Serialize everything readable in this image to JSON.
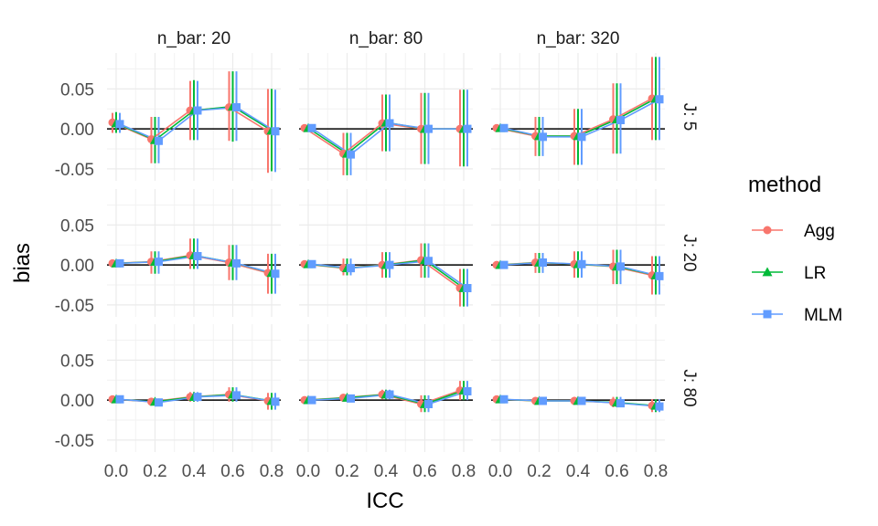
{
  "chart_data": {
    "type": "line",
    "title": "",
    "xlabel": "ICC",
    "ylabel": "bias",
    "x": [
      0.0,
      0.2,
      0.4,
      0.6,
      0.8
    ],
    "x_tick_labels": [
      "0.0",
      "0.2",
      "0.4",
      "0.6",
      "0.8"
    ],
    "ylim": [
      -0.065,
      0.095
    ],
    "y_ticks": [
      -0.05,
      0.0,
      0.05
    ],
    "y_tick_labels": [
      "-0.05",
      "0.00",
      "0.05"
    ],
    "grid": true,
    "reference_line_y": 0,
    "facet_columns": [
      "n_bar: 20",
      "n_bar: 80",
      "n_bar: 320"
    ],
    "facet_rows": [
      "J: 5",
      "J: 20",
      "J: 80"
    ],
    "legend": {
      "title": "method",
      "position": "right",
      "entries": [
        {
          "name": "Agg",
          "color": "#F8766D",
          "shape": "circle"
        },
        {
          "name": "LR",
          "color": "#00BA38",
          "shape": "triangle"
        },
        {
          "name": "MLM",
          "color": "#619CFF",
          "shape": "square"
        }
      ]
    },
    "panels": [
      {
        "row": 0,
        "col": 0,
        "series": [
          {
            "name": "Agg",
            "values": [
              0.008,
              -0.013,
              0.023,
              0.027,
              -0.003
            ],
            "lower": [
              -0.005,
              -0.043,
              -0.014,
              -0.015,
              -0.055
            ],
            "upper": [
              0.02,
              0.015,
              0.06,
              0.072,
              0.05
            ]
          },
          {
            "name": "LR",
            "values": [
              0.007,
              -0.014,
              0.023,
              0.028,
              -0.002
            ],
            "lower": [
              -0.005,
              -0.043,
              -0.014,
              -0.016,
              -0.053
            ],
            "upper": [
              0.021,
              0.015,
              0.061,
              0.072,
              0.05
            ]
          },
          {
            "name": "MLM",
            "values": [
              0.006,
              -0.015,
              0.023,
              0.027,
              -0.003
            ],
            "lower": [
              -0.005,
              -0.043,
              -0.014,
              -0.015,
              -0.054
            ],
            "upper": [
              0.02,
              0.015,
              0.06,
              0.072,
              0.049
            ]
          }
        ]
      },
      {
        "row": 0,
        "col": 1,
        "series": [
          {
            "name": "Agg",
            "values": [
              0.001,
              -0.031,
              0.007,
              0.0,
              0.0
            ],
            "lower": [
              -0.003,
              -0.058,
              -0.028,
              -0.044,
              -0.047
            ],
            "upper": [
              0.004,
              -0.005,
              0.043,
              0.045,
              0.049
            ]
          },
          {
            "name": "LR",
            "values": [
              0.001,
              -0.031,
              0.008,
              0.0,
              0.0
            ],
            "lower": [
              -0.003,
              -0.058,
              -0.028,
              -0.044,
              -0.047
            ],
            "upper": [
              0.004,
              -0.005,
              0.043,
              0.045,
              0.049
            ]
          },
          {
            "name": "MLM",
            "values": [
              0.001,
              -0.032,
              0.007,
              0.0,
              0.0
            ],
            "lower": [
              -0.003,
              -0.058,
              -0.028,
              -0.044,
              -0.047
            ],
            "upper": [
              0.004,
              -0.005,
              0.043,
              0.045,
              0.049
            ]
          }
        ]
      },
      {
        "row": 0,
        "col": 2,
        "series": [
          {
            "name": "Agg",
            "values": [
              0.001,
              -0.009,
              -0.009,
              0.012,
              0.038
            ],
            "lower": [
              -0.003,
              -0.034,
              -0.045,
              -0.031,
              -0.014
            ],
            "upper": [
              0.004,
              0.015,
              0.025,
              0.057,
              0.09
            ]
          },
          {
            "name": "LR",
            "values": [
              0.001,
              -0.009,
              -0.009,
              0.012,
              0.038
            ],
            "lower": [
              -0.003,
              -0.034,
              -0.045,
              -0.031,
              -0.014
            ],
            "upper": [
              0.004,
              0.015,
              0.025,
              0.057,
              0.09
            ]
          },
          {
            "name": "MLM",
            "values": [
              0.001,
              -0.01,
              -0.01,
              0.011,
              0.037
            ],
            "lower": [
              -0.003,
              -0.034,
              -0.045,
              -0.031,
              -0.014
            ],
            "upper": [
              0.004,
              0.015,
              0.025,
              0.057,
              0.09
            ]
          }
        ]
      },
      {
        "row": 1,
        "col": 0,
        "series": [
          {
            "name": "Agg",
            "values": [
              0.002,
              0.004,
              0.012,
              0.003,
              -0.01
            ],
            "lower": [
              -0.003,
              -0.011,
              -0.005,
              -0.019,
              -0.036
            ],
            "upper": [
              0.006,
              0.017,
              0.033,
              0.025,
              0.014
            ]
          },
          {
            "name": "LR",
            "values": [
              0.002,
              0.004,
              0.012,
              0.003,
              -0.01
            ],
            "lower": [
              -0.003,
              -0.011,
              -0.005,
              -0.019,
              -0.036
            ],
            "upper": [
              0.006,
              0.017,
              0.033,
              0.025,
              0.014
            ]
          },
          {
            "name": "MLM",
            "values": [
              0.002,
              0.004,
              0.011,
              0.002,
              -0.011
            ],
            "lower": [
              -0.003,
              -0.011,
              -0.005,
              -0.019,
              -0.036
            ],
            "upper": [
              0.006,
              0.017,
              0.033,
              0.025,
              0.014
            ]
          }
        ]
      },
      {
        "row": 1,
        "col": 1,
        "series": [
          {
            "name": "Agg",
            "values": [
              0.001,
              -0.004,
              0.0,
              0.006,
              -0.029
            ],
            "lower": [
              -0.003,
              -0.013,
              -0.016,
              -0.016,
              -0.052
            ],
            "upper": [
              0.004,
              0.008,
              0.016,
              0.027,
              -0.005
            ]
          },
          {
            "name": "LR",
            "values": [
              0.001,
              -0.004,
              0.0,
              0.006,
              -0.029
            ],
            "lower": [
              -0.003,
              -0.013,
              -0.016,
              -0.016,
              -0.052
            ],
            "upper": [
              0.004,
              0.008,
              0.016,
              0.027,
              -0.005
            ]
          },
          {
            "name": "MLM",
            "values": [
              0.001,
              -0.004,
              0.0,
              0.005,
              -0.029
            ],
            "lower": [
              -0.003,
              -0.013,
              -0.016,
              -0.016,
              -0.052
            ],
            "upper": [
              0.004,
              0.008,
              0.016,
              0.027,
              -0.005
            ]
          }
        ]
      },
      {
        "row": 1,
        "col": 2,
        "series": [
          {
            "name": "Agg",
            "values": [
              0.0,
              0.003,
              0.001,
              -0.002,
              -0.013
            ],
            "lower": [
              -0.004,
              -0.01,
              -0.016,
              -0.024,
              -0.037
            ],
            "upper": [
              0.004,
              0.015,
              0.017,
              0.019,
              0.011
            ]
          },
          {
            "name": "LR",
            "values": [
              0.0,
              0.003,
              0.001,
              -0.002,
              -0.013
            ],
            "lower": [
              -0.004,
              -0.01,
              -0.016,
              -0.024,
              -0.037
            ],
            "upper": [
              0.004,
              0.015,
              0.017,
              0.019,
              0.011
            ]
          },
          {
            "name": "MLM",
            "values": [
              0.0,
              0.003,
              0.001,
              -0.002,
              -0.014
            ],
            "lower": [
              -0.004,
              -0.01,
              -0.016,
              -0.024,
              -0.037
            ],
            "upper": [
              0.004,
              0.015,
              0.017,
              0.019,
              0.011
            ]
          }
        ]
      },
      {
        "row": 2,
        "col": 0,
        "series": [
          {
            "name": "Agg",
            "values": [
              0.001,
              -0.002,
              0.004,
              0.007,
              -0.001
            ],
            "lower": [
              -0.002,
              -0.006,
              -0.002,
              -0.002,
              -0.012
            ],
            "upper": [
              0.004,
              0.002,
              0.01,
              0.016,
              0.009
            ]
          },
          {
            "name": "LR",
            "values": [
              0.001,
              -0.002,
              0.004,
              0.007,
              -0.001
            ],
            "lower": [
              -0.002,
              -0.006,
              -0.002,
              -0.002,
              -0.012
            ],
            "upper": [
              0.004,
              0.002,
              0.01,
              0.016,
              0.009
            ]
          },
          {
            "name": "MLM",
            "values": [
              0.001,
              -0.003,
              0.004,
              0.006,
              -0.002
            ],
            "lower": [
              -0.002,
              -0.006,
              -0.002,
              -0.002,
              -0.012
            ],
            "upper": [
              0.004,
              0.002,
              0.01,
              0.016,
              0.009
            ]
          }
        ]
      },
      {
        "row": 2,
        "col": 1,
        "series": [
          {
            "name": "Agg",
            "values": [
              0.0,
              0.003,
              0.007,
              -0.005,
              0.012
            ],
            "lower": [
              -0.003,
              -0.002,
              0.001,
              -0.015,
              0.0
            ],
            "upper": [
              0.003,
              0.007,
              0.013,
              0.006,
              0.024
            ]
          },
          {
            "name": "LR",
            "values": [
              0.0,
              0.003,
              0.007,
              -0.005,
              0.012
            ],
            "lower": [
              -0.003,
              -0.002,
              0.001,
              -0.015,
              0.0
            ],
            "upper": [
              0.003,
              0.007,
              0.013,
              0.006,
              0.024
            ]
          },
          {
            "name": "MLM",
            "values": [
              0.0,
              0.002,
              0.007,
              -0.005,
              0.011
            ],
            "lower": [
              -0.003,
              -0.002,
              0.001,
              -0.015,
              0.0
            ],
            "upper": [
              0.003,
              0.007,
              0.013,
              0.006,
              0.024
            ]
          }
        ]
      },
      {
        "row": 2,
        "col": 2,
        "series": [
          {
            "name": "Agg",
            "values": [
              0.001,
              -0.001,
              -0.001,
              -0.003,
              -0.007
            ],
            "lower": [
              -0.003,
              -0.005,
              -0.006,
              -0.009,
              -0.015
            ],
            "upper": [
              0.004,
              0.003,
              0.004,
              0.004,
              0.001
            ]
          },
          {
            "name": "LR",
            "values": [
              0.001,
              -0.001,
              -0.001,
              -0.003,
              -0.007
            ],
            "lower": [
              -0.003,
              -0.005,
              -0.006,
              -0.009,
              -0.015
            ],
            "upper": [
              0.004,
              0.003,
              0.004,
              0.004,
              0.001
            ]
          },
          {
            "name": "MLM",
            "values": [
              0.001,
              -0.001,
              -0.001,
              -0.004,
              -0.008
            ],
            "lower": [
              -0.003,
              -0.005,
              -0.006,
              -0.009,
              -0.015
            ],
            "upper": [
              0.004,
              0.003,
              0.004,
              0.004,
              0.001
            ]
          }
        ]
      }
    ]
  }
}
